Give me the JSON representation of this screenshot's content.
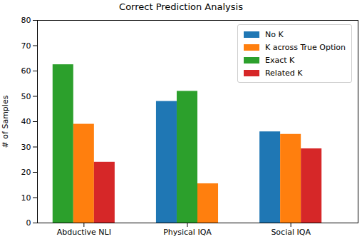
{
  "chart_data": {
    "type": "bar",
    "title": "Correct Prediction Analysis",
    "y_label": "# of Samples",
    "categories": [
      "Abductive NLI",
      "Physical IQA",
      "Social IQA"
    ],
    "series": [
      {
        "name": "No K",
        "color": "#1f77b4",
        "values": [
          null,
          48,
          36
        ]
      },
      {
        "name": "K across True Option",
        "color": "#ff7f0e",
        "values": [
          39,
          15.5,
          35
        ]
      },
      {
        "name": "Exact K",
        "color": "#2ca02c",
        "values": [
          62.5,
          52,
          null
        ]
      },
      {
        "name": "Related K",
        "color": "#d62728",
        "values": [
          24,
          null,
          29.3
        ]
      }
    ],
    "ylim": [
      0,
      80
    ],
    "yticks": [
      0,
      10,
      20,
      30,
      40,
      50,
      60,
      70,
      80
    ],
    "grid": false,
    "legend": "upper right"
  }
}
